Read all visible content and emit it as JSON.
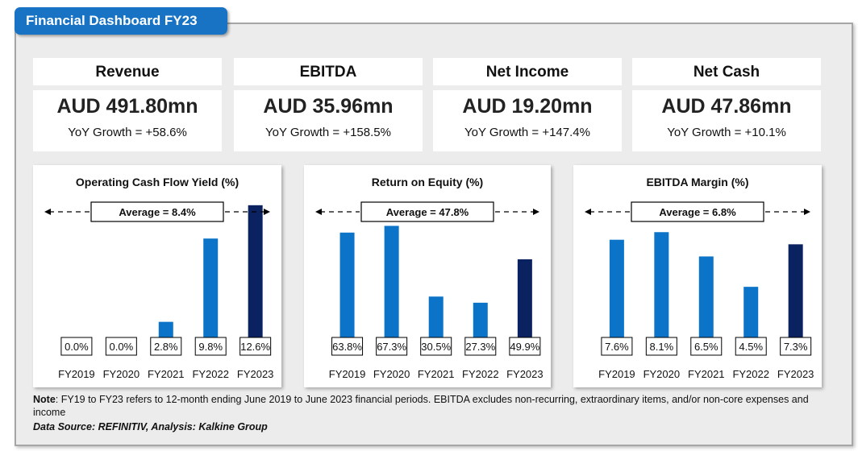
{
  "header": {
    "title": "Financial Dashboard FY23"
  },
  "kpis": [
    {
      "label": "Revenue",
      "value": "AUD 491.80mn",
      "growth": "YoY Growth = +58.6%"
    },
    {
      "label": "EBITDA",
      "value": "AUD 35.96mn",
      "growth": "YoY Growth = +158.5%"
    },
    {
      "label": "Net Income",
      "value": "AUD 19.20mn",
      "growth": "YoY Growth = +147.4%"
    },
    {
      "label": "Net Cash",
      "value": "AUD 47.86mn",
      "growth": "YoY Growth = +10.1%"
    }
  ],
  "colors": {
    "accent": "#1873c4",
    "bar": "#0b74c8",
    "bar_latest": "#0b2260",
    "panel": "#ececec"
  },
  "chart_data": [
    {
      "type": "bar",
      "title": "Operating Cash Flow Yield (%)",
      "categories": [
        "FY2019",
        "FY2020",
        "FY2021",
        "FY2022",
        "FY2023"
      ],
      "values": [
        0.0,
        0.0,
        2.8,
        9.8,
        12.6
      ],
      "labels": [
        "0.0%",
        "0.0%",
        "2.8%",
        "9.8%",
        "12.6%"
      ],
      "average_label": "Average = 8.4%",
      "ylim": [
        0,
        13.4
      ]
    },
    {
      "type": "bar",
      "title": "Return on Equity (%)",
      "categories": [
        "FY2019",
        "FY2020",
        "FY2021",
        "FY2022",
        "FY2023"
      ],
      "values": [
        63.8,
        67.3,
        30.5,
        27.3,
        49.9
      ],
      "labels": [
        "63.8%",
        "67.3%",
        "30.5%",
        "27.3%",
        "49.9%"
      ],
      "average_label": "Average = 47.8%",
      "ylim": [
        0,
        83
      ]
    },
    {
      "type": "bar",
      "title": "EBITDA Margin (%)",
      "categories": [
        "FY2019",
        "FY2020",
        "FY2021",
        "FY2022",
        "FY2023"
      ],
      "values": [
        7.6,
        8.1,
        6.5,
        4.5,
        7.3
      ],
      "labels": [
        "7.6%",
        "8.1%",
        "6.5%",
        "4.5%",
        "7.3%"
      ],
      "average_label": "Average = 6.8%",
      "ylim": [
        0,
        10.5
      ]
    }
  ],
  "footer": {
    "note_label": "Note",
    "note_text": ": FY19 to FY23 refers to 12-month ending June 2019 to June 2023 financial periods. EBITDA excludes non-recurring, extraordinary items, and/or non-core expenses and income",
    "source": "Data Source: REFINITIV, Analysis: Kalkine Group"
  }
}
